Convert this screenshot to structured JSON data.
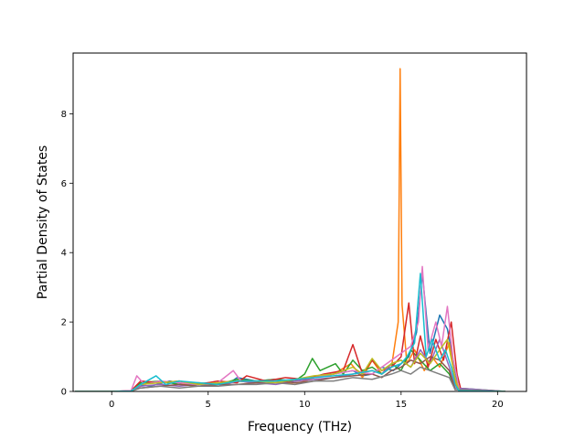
{
  "chart_data": {
    "type": "line",
    "title": "",
    "xlabel": "Frequency (THz)",
    "ylabel": "Partial Density of States",
    "xlim": [
      -2.0,
      21.5
    ],
    "ylim": [
      0,
      9.75
    ],
    "xticks": [
      0,
      5,
      10,
      15,
      20
    ],
    "yticks": [
      0,
      2,
      4,
      6,
      8
    ],
    "xtick_labels": [
      "0",
      "5",
      "10",
      "15",
      "20"
    ],
    "ytick_labels": [
      "0",
      "2",
      "4",
      "6",
      "8"
    ],
    "grid": false,
    "legend": false,
    "series": [
      {
        "color": "#1f77b4",
        "x": [
          -1.9,
          0,
          1.0,
          1.4,
          2.0,
          3.0,
          4.0,
          5.0,
          6.0,
          6.5,
          7.5,
          8.5,
          9.5,
          10.5,
          11.5,
          12.5,
          13.0,
          13.5,
          14.0,
          14.6,
          15.0,
          15.4,
          15.8,
          16.1,
          16.5,
          17.0,
          17.4,
          17.8,
          18.0,
          19.0,
          20.4
        ],
        "y": [
          0,
          0,
          0.02,
          0.2,
          0.15,
          0.3,
          0.2,
          0.25,
          0.2,
          0.4,
          0.3,
          0.35,
          0.3,
          0.4,
          0.5,
          0.6,
          0.45,
          0.5,
          0.7,
          0.6,
          0.8,
          1.0,
          1.7,
          3.4,
          1.1,
          2.2,
          1.8,
          0.6,
          0.05,
          0,
          0
        ]
      },
      {
        "color": "#ff7f0e",
        "x": [
          -1.9,
          0,
          1.0,
          1.5,
          2.5,
          3.5,
          4.5,
          5.5,
          6.5,
          7.5,
          8.5,
          9.5,
          10.5,
          11.5,
          12.4,
          13.0,
          13.5,
          14.0,
          14.5,
          14.85,
          14.95,
          15.05,
          15.3,
          15.7,
          16.2,
          16.6,
          17.0,
          17.5,
          17.8,
          18.0,
          20.4
        ],
        "y": [
          0,
          0,
          0.01,
          0.2,
          0.3,
          0.2,
          0.25,
          0.2,
          0.3,
          0.25,
          0.3,
          0.2,
          0.4,
          0.5,
          0.8,
          0.4,
          0.9,
          0.5,
          0.7,
          2.0,
          9.3,
          2.5,
          0.8,
          1.2,
          0.6,
          1.0,
          0.7,
          1.4,
          0.3,
          0.02,
          0
        ]
      },
      {
        "color": "#2ca02c",
        "x": [
          -1.9,
          0,
          1.0,
          1.5,
          2.5,
          3.5,
          4.5,
          5.5,
          6.5,
          7.5,
          8.5,
          9.5,
          10.0,
          10.4,
          10.8,
          11.2,
          11.6,
          12.0,
          12.5,
          13.0,
          13.5,
          14.0,
          14.5,
          15.0,
          15.5,
          16.0,
          16.5,
          17.0,
          17.5,
          17.8,
          20.4
        ],
        "y": [
          0,
          0,
          0.01,
          0.25,
          0.3,
          0.2,
          0.15,
          0.2,
          0.35,
          0.3,
          0.35,
          0.3,
          0.5,
          0.95,
          0.6,
          0.7,
          0.8,
          0.5,
          0.9,
          0.6,
          0.7,
          0.5,
          0.8,
          0.6,
          1.2,
          0.9,
          0.6,
          0.8,
          0.5,
          0.1,
          0
        ]
      },
      {
        "color": "#d62728",
        "x": [
          -1.9,
          0,
          1.0,
          1.5,
          2.5,
          3.5,
          4.5,
          5.5,
          6.5,
          7.0,
          8.0,
          9.0,
          10.0,
          11.0,
          12.0,
          12.5,
          13.0,
          13.5,
          14.0,
          14.5,
          15.0,
          15.4,
          15.7,
          16.0,
          16.4,
          16.8,
          17.2,
          17.6,
          17.9,
          18.1,
          20.4
        ],
        "y": [
          0,
          0,
          0.02,
          0.3,
          0.25,
          0.3,
          0.2,
          0.3,
          0.25,
          0.45,
          0.3,
          0.4,
          0.35,
          0.5,
          0.6,
          1.35,
          0.5,
          0.9,
          0.6,
          0.7,
          1.0,
          2.55,
          0.8,
          1.6,
          0.7,
          1.5,
          0.9,
          2.0,
          0.5,
          0.05,
          0
        ]
      },
      {
        "color": "#9467bd",
        "x": [
          -1.9,
          0,
          1.0,
          1.5,
          2.5,
          3.5,
          4.5,
          5.5,
          6.5,
          7.5,
          8.5,
          9.5,
          10.5,
          11.5,
          12.5,
          13.5,
          14.0,
          14.5,
          15.0,
          15.5,
          16.0,
          16.5,
          17.0,
          17.5,
          17.8,
          20.4
        ],
        "y": [
          0,
          0,
          0.01,
          0.15,
          0.2,
          0.15,
          0.2,
          0.15,
          0.3,
          0.25,
          0.2,
          0.3,
          0.35,
          0.4,
          0.5,
          0.6,
          0.5,
          0.8,
          0.9,
          0.7,
          1.2,
          0.8,
          1.5,
          0.7,
          0.1,
          0
        ]
      },
      {
        "color": "#8c564b",
        "x": [
          -1.9,
          0,
          1.0,
          1.5,
          2.5,
          3.5,
          4.5,
          5.5,
          6.5,
          7.5,
          8.5,
          9.5,
          10.5,
          11.5,
          12.5,
          13.5,
          14.0,
          14.5,
          15.0,
          15.5,
          16.0,
          16.5,
          17.0,
          17.5,
          17.8,
          20.4
        ],
        "y": [
          0,
          0,
          0.01,
          0.1,
          0.15,
          0.2,
          0.15,
          0.2,
          0.2,
          0.25,
          0.3,
          0.25,
          0.3,
          0.4,
          0.45,
          0.5,
          0.4,
          0.6,
          0.7,
          0.9,
          0.8,
          1.0,
          0.9,
          0.6,
          0.05,
          0
        ]
      },
      {
        "color": "#e377c2",
        "x": [
          -1.9,
          0,
          1.0,
          1.3,
          1.7,
          2.5,
          3.5,
          4.5,
          5.5,
          6.3,
          6.7,
          7.5,
          8.5,
          9.5,
          10.5,
          11.5,
          12.5,
          13.5,
          14.5,
          15.0,
          15.5,
          15.9,
          16.1,
          16.4,
          16.8,
          17.1,
          17.4,
          17.7,
          17.9,
          18.0,
          20.4
        ],
        "y": [
          0,
          0,
          0.02,
          0.45,
          0.2,
          0.3,
          0.25,
          0.2,
          0.25,
          0.6,
          0.3,
          0.3,
          0.3,
          0.35,
          0.4,
          0.5,
          0.6,
          0.5,
          0.9,
          1.1,
          1.3,
          2.0,
          3.6,
          1.2,
          2.0,
          1.3,
          2.45,
          0.9,
          0.4,
          0.02,
          0
        ]
      },
      {
        "color": "#7f7f7f",
        "x": [
          -1.9,
          0,
          1.0,
          1.5,
          2.5,
          3.5,
          4.5,
          5.5,
          6.5,
          7.5,
          8.5,
          9.5,
          10.5,
          11.5,
          12.5,
          13.5,
          14.5,
          15.0,
          15.5,
          16.0,
          16.5,
          17.0,
          17.5,
          17.8,
          20.4
        ],
        "y": [
          0,
          0,
          0.01,
          0.1,
          0.15,
          0.1,
          0.15,
          0.15,
          0.2,
          0.2,
          0.25,
          0.2,
          0.3,
          0.3,
          0.4,
          0.35,
          0.5,
          0.6,
          0.5,
          0.7,
          0.6,
          0.5,
          0.4,
          0.05,
          0
        ]
      },
      {
        "color": "#bcbd22",
        "x": [
          -1.9,
          0,
          1.0,
          1.5,
          2.5,
          3.5,
          4.5,
          5.5,
          6.5,
          7.5,
          8.5,
          9.5,
          10.5,
          11.5,
          12.5,
          13.0,
          13.5,
          14.0,
          14.5,
          15.0,
          15.5,
          16.0,
          16.5,
          17.0,
          17.4,
          17.8,
          18.0,
          20.4
        ],
        "y": [
          0,
          0,
          0.01,
          0.2,
          0.25,
          0.3,
          0.2,
          0.25,
          0.3,
          0.3,
          0.25,
          0.35,
          0.45,
          0.5,
          0.7,
          0.5,
          0.95,
          0.6,
          0.8,
          0.9,
          0.7,
          1.1,
          0.8,
          1.2,
          1.5,
          0.4,
          0.02,
          0
        ]
      },
      {
        "color": "#17becf",
        "x": [
          -1.9,
          0,
          1.0,
          1.5,
          2.3,
          2.8,
          3.5,
          4.5,
          5.5,
          6.5,
          7.5,
          8.5,
          9.5,
          10.5,
          11.5,
          12.5,
          13.5,
          14.0,
          14.5,
          15.0,
          15.3,
          15.7,
          16.0,
          16.3,
          16.6,
          17.0,
          17.3,
          17.6,
          17.8,
          18.0,
          20.4
        ],
        "y": [
          0,
          0,
          0.01,
          0.2,
          0.45,
          0.2,
          0.3,
          0.25,
          0.2,
          0.3,
          0.3,
          0.3,
          0.35,
          0.4,
          0.45,
          0.5,
          0.6,
          0.5,
          0.7,
          0.8,
          1.0,
          1.4,
          3.4,
          1.0,
          1.5,
          0.9,
          1.2,
          0.7,
          0.2,
          0.02,
          0
        ]
      }
    ]
  }
}
